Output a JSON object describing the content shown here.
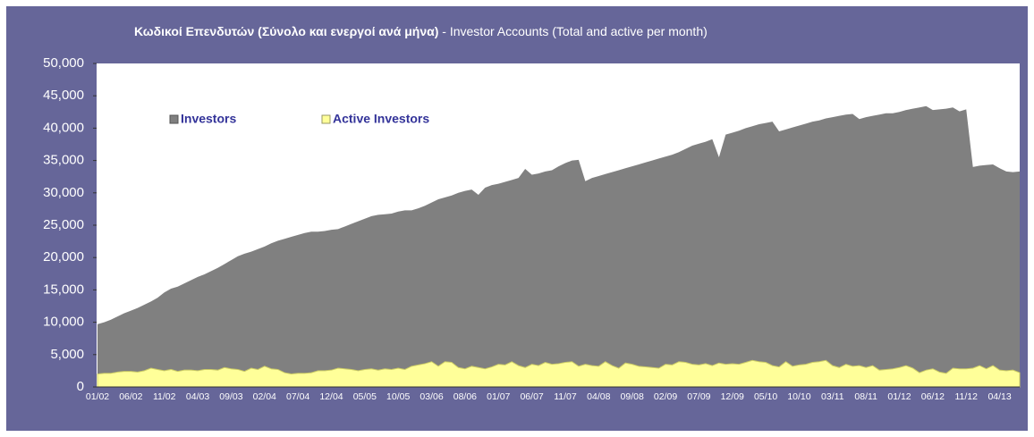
{
  "chart_data": {
    "type": "area",
    "title": "Κωδικοί Επενδυτών (Σύνολο και ενεργοί ανά μήνα)",
    "title_en": "- Investor Accounts (Total and active per month)",
    "categories": [
      "01/02",
      null,
      null,
      null,
      null,
      "06/02",
      null,
      null,
      null,
      null,
      "11/02",
      null,
      null,
      null,
      null,
      "04/03",
      null,
      null,
      null,
      null,
      "09/03",
      null,
      null,
      null,
      null,
      "02/04",
      null,
      null,
      null,
      null,
      "07/04",
      null,
      null,
      null,
      null,
      "12/04",
      null,
      null,
      null,
      null,
      "05/05",
      null,
      null,
      null,
      null,
      "10/05",
      null,
      null,
      null,
      null,
      "03/06",
      null,
      null,
      null,
      null,
      "08/06",
      null,
      null,
      null,
      null,
      "01/07",
      null,
      null,
      null,
      null,
      "06/07",
      null,
      null,
      null,
      null,
      "11/07",
      null,
      null,
      null,
      null,
      "04/08",
      null,
      null,
      null,
      null,
      "09/08",
      null,
      null,
      null,
      null,
      "02/09",
      null,
      null,
      null,
      null,
      "07/09",
      null,
      null,
      null,
      null,
      "12/09",
      null,
      null,
      null,
      null,
      "05/10",
      null,
      null,
      null,
      null,
      "10/10",
      null,
      null,
      null,
      null,
      "03/11",
      null,
      null,
      null,
      null,
      "08/11",
      null,
      null,
      null,
      null,
      "01/12",
      null,
      null,
      null,
      null,
      "06/12",
      null,
      null,
      null,
      null,
      "11/12",
      null,
      null,
      null,
      null,
      "04/13",
      null,
      null,
      null
    ],
    "series": [
      {
        "name": "Investors",
        "color": "#808080",
        "values": [
          9700,
          10000,
          10400,
          10900,
          11400,
          11800,
          12200,
          12700,
          13200,
          13800,
          14600,
          15200,
          15500,
          16000,
          16500,
          17000,
          17400,
          17900,
          18400,
          19000,
          19600,
          20200,
          20600,
          20900,
          21300,
          21700,
          22200,
          22600,
          22900,
          23200,
          23500,
          23800,
          24000,
          24000,
          24100,
          24300,
          24400,
          24800,
          25200,
          25600,
          26000,
          26400,
          26600,
          26700,
          26800,
          27100,
          27300,
          27300,
          27600,
          28000,
          28500,
          29000,
          29300,
          29600,
          30000,
          30300,
          30500,
          29700,
          30800,
          31200,
          31400,
          31700,
          32000,
          32300,
          33700,
          32800,
          33000,
          33300,
          33500,
          34100,
          34600,
          35000,
          35100,
          31800,
          32300,
          32600,
          32900,
          33200,
          33500,
          33800,
          34100,
          34400,
          34700,
          35000,
          35300,
          35600,
          35900,
          36300,
          36800,
          37300,
          37600,
          37900,
          38300,
          35500,
          39000,
          39300,
          39600,
          40000,
          40300,
          40600,
          40800,
          41000,
          39500,
          39800,
          40100,
          40400,
          40700,
          41000,
          41200,
          41500,
          41700,
          41900,
          42100,
          42200,
          41400,
          41700,
          41900,
          42100,
          42300,
          42300,
          42500,
          42800,
          43000,
          43200,
          43400,
          42800,
          42900,
          43000,
          43200,
          42600,
          42900,
          34000,
          34200,
          34300,
          34400,
          33800,
          33300,
          33200,
          33300
        ]
      },
      {
        "name": "Active Investors",
        "color": "#ffff99",
        "values": [
          2000,
          2100,
          2100,
          2300,
          2400,
          2400,
          2300,
          2500,
          2900,
          2700,
          2500,
          2700,
          2400,
          2600,
          2600,
          2500,
          2700,
          2700,
          2600,
          3000,
          2800,
          2700,
          2400,
          2900,
          2700,
          3200,
          2800,
          2700,
          2200,
          2000,
          2100,
          2100,
          2200,
          2500,
          2500,
          2600,
          2900,
          2800,
          2700,
          2500,
          2700,
          2800,
          2600,
          2800,
          2700,
          2900,
          2700,
          3200,
          3400,
          3600,
          3900,
          3200,
          3900,
          3800,
          3000,
          2800,
          3200,
          3000,
          2800,
          3100,
          3500,
          3400,
          3900,
          3300,
          3000,
          3500,
          3300,
          3800,
          3500,
          3600,
          3800,
          3900,
          3200,
          3500,
          3300,
          3200,
          3900,
          3300,
          2900,
          3700,
          3500,
          3200,
          3100,
          3000,
          2900,
          3500,
          3400,
          3900,
          3800,
          3500,
          3400,
          3600,
          3300,
          3700,
          3500,
          3600,
          3500,
          3800,
          4100,
          3900,
          3800,
          3300,
          3100,
          3900,
          3200,
          3400,
          3500,
          3800,
          3900,
          4100,
          3300,
          3000,
          3500,
          3200,
          3300,
          3000,
          3300,
          2600,
          2700,
          2800,
          3000,
          3300,
          2900,
          2200,
          2600,
          2800,
          2300,
          2100,
          2900,
          2800,
          2800,
          2900,
          3300,
          2800,
          3300,
          2600,
          2500,
          2600,
          2200
        ]
      }
    ],
    "ylim": [
      0,
      50000
    ],
    "yticks": [
      0,
      {
        "value": 5000,
        "label": "5,000"
      },
      {
        "value": 10000,
        "label": "10,000"
      },
      {
        "value": 15000,
        "label": "15,000"
      },
      {
        "value": 20000,
        "label": "20,000"
      },
      {
        "value": 25000,
        "label": "25,000"
      },
      {
        "value": 30000,
        "label": "30,000"
      },
      {
        "value": 35000,
        "label": "35,000"
      },
      {
        "value": 40000,
        "label": "40,000"
      },
      {
        "value": 45000,
        "label": "45,000"
      },
      {
        "value": 50000,
        "label": "50,000"
      }
    ],
    "grid": false
  }
}
